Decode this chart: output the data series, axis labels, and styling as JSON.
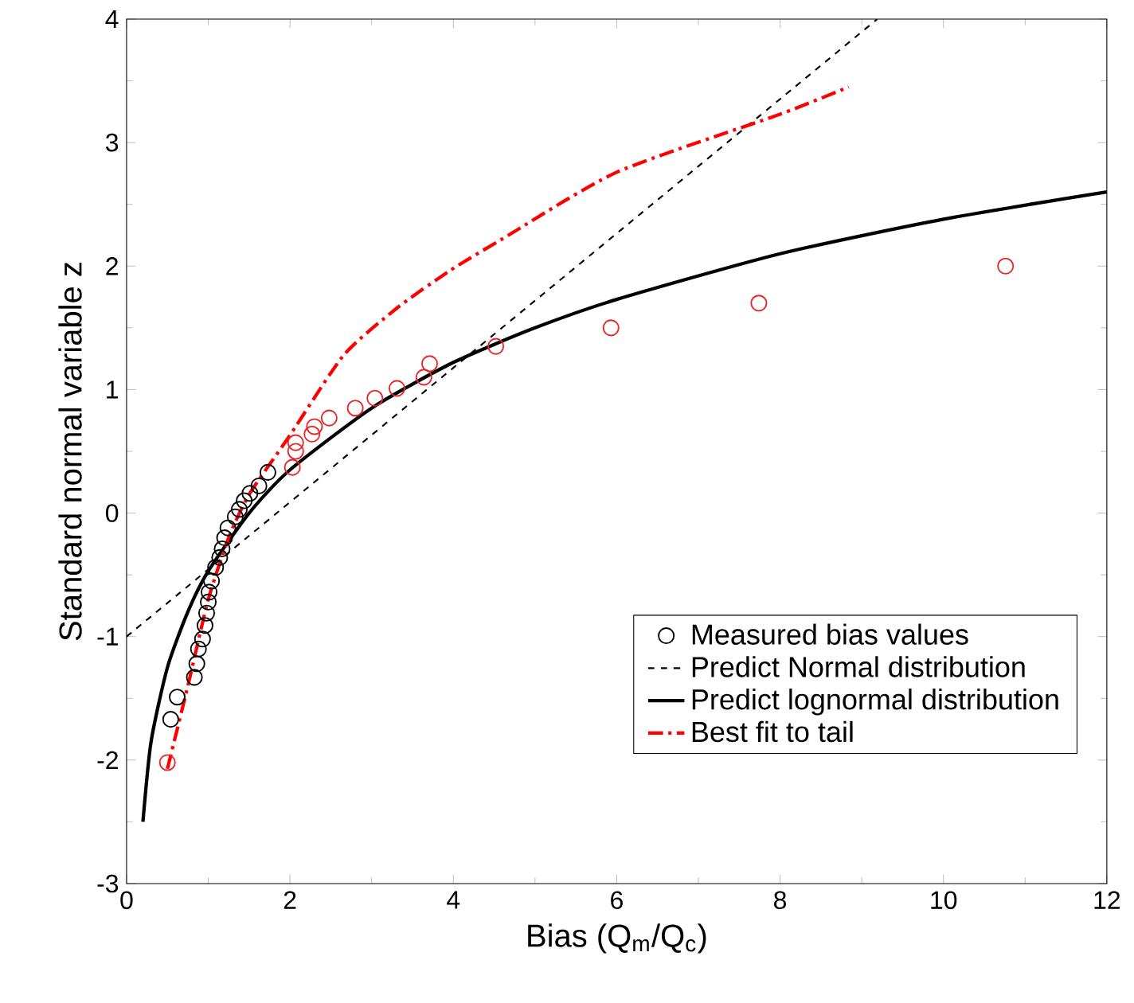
{
  "chart_data": {
    "type": "scatter",
    "xlabel": "Bias (Q$_{m}$/Q$_{c}$)",
    "ylabel": "Standard normal variable z",
    "xlim": [
      0,
      12
    ],
    "ylim": [
      -3,
      4
    ],
    "xticks": [
      0,
      2,
      4,
      6,
      8,
      10,
      12
    ],
    "yticks": [
      -3,
      -2,
      -1,
      0,
      1,
      2,
      3,
      4
    ],
    "legend": "bottom right",
    "grid": false,
    "series": [
      {
        "name": "Measured bias values",
        "marker": "circle",
        "color": "#000000",
        "x": [
          0.54,
          0.62,
          0.83,
          0.86,
          0.88,
          0.93,
          0.96,
          0.98,
          1.0,
          1.01,
          1.04,
          1.09,
          1.14,
          1.17,
          1.2,
          1.24,
          1.33,
          1.38,
          1.44,
          1.51,
          1.62,
          1.73
        ],
        "values": [
          -1.67,
          -1.49,
          -1.33,
          -1.22,
          -1.1,
          -1.02,
          -0.91,
          -0.81,
          -0.72,
          -0.64,
          -0.55,
          -0.44,
          -0.36,
          -0.29,
          -0.2,
          -0.12,
          -0.03,
          0.03,
          0.1,
          0.16,
          0.22,
          0.33
        ]
      },
      {
        "marker": "circle",
        "color": "#e8262a",
        "x": [
          0.5,
          2.03,
          2.07,
          2.07,
          2.27,
          2.3,
          2.48,
          2.8,
          3.04,
          3.31,
          3.64,
          3.71,
          4.52,
          5.93,
          7.74,
          10.76
        ],
        "values": [
          -2.02,
          0.37,
          0.5,
          0.57,
          0.64,
          0.7,
          0.77,
          0.85,
          0.93,
          1.01,
          1.1,
          1.21,
          1.35,
          1.5,
          1.7,
          2.0
        ]
      },
      {
        "name": "Predict Normal distribution",
        "type": "line",
        "marker": "none",
        "line_style": "dashed",
        "color": "#000000",
        "x": [
          0,
          9.19
        ],
        "values": [
          -1,
          4
        ]
      },
      {
        "name": "Predict lognormal distribution",
        "type": "line",
        "marker": "none",
        "line_style": "solid",
        "color": "#000000",
        "x": [
          0.2,
          0.3,
          0.5,
          0.75,
          1,
          1.5,
          2,
          3,
          4,
          5,
          6,
          8,
          10,
          12
        ],
        "values": [
          -2.5,
          -1.85,
          -1.25,
          -0.8,
          -0.47,
          0,
          0.35,
          0.85,
          1.22,
          1.5,
          1.73,
          2.1,
          2.38,
          2.6
        ]
      },
      {
        "name": "Best fit to tail",
        "type": "line",
        "marker": "none",
        "line_style": "dashdot",
        "color": "#ff0000",
        "x": [
          0.5,
          0.75,
          1.0,
          1.25,
          1.5,
          2.0,
          2.66,
          3.31,
          3.95,
          4.6,
          6,
          8,
          8.84
        ],
        "values": [
          -2.07,
          -1.4,
          -0.7,
          -0.2,
          0.15,
          0.63,
          1.28,
          1.66,
          1.96,
          2.22,
          2.76,
          3.23,
          3.45
        ]
      }
    ]
  }
}
